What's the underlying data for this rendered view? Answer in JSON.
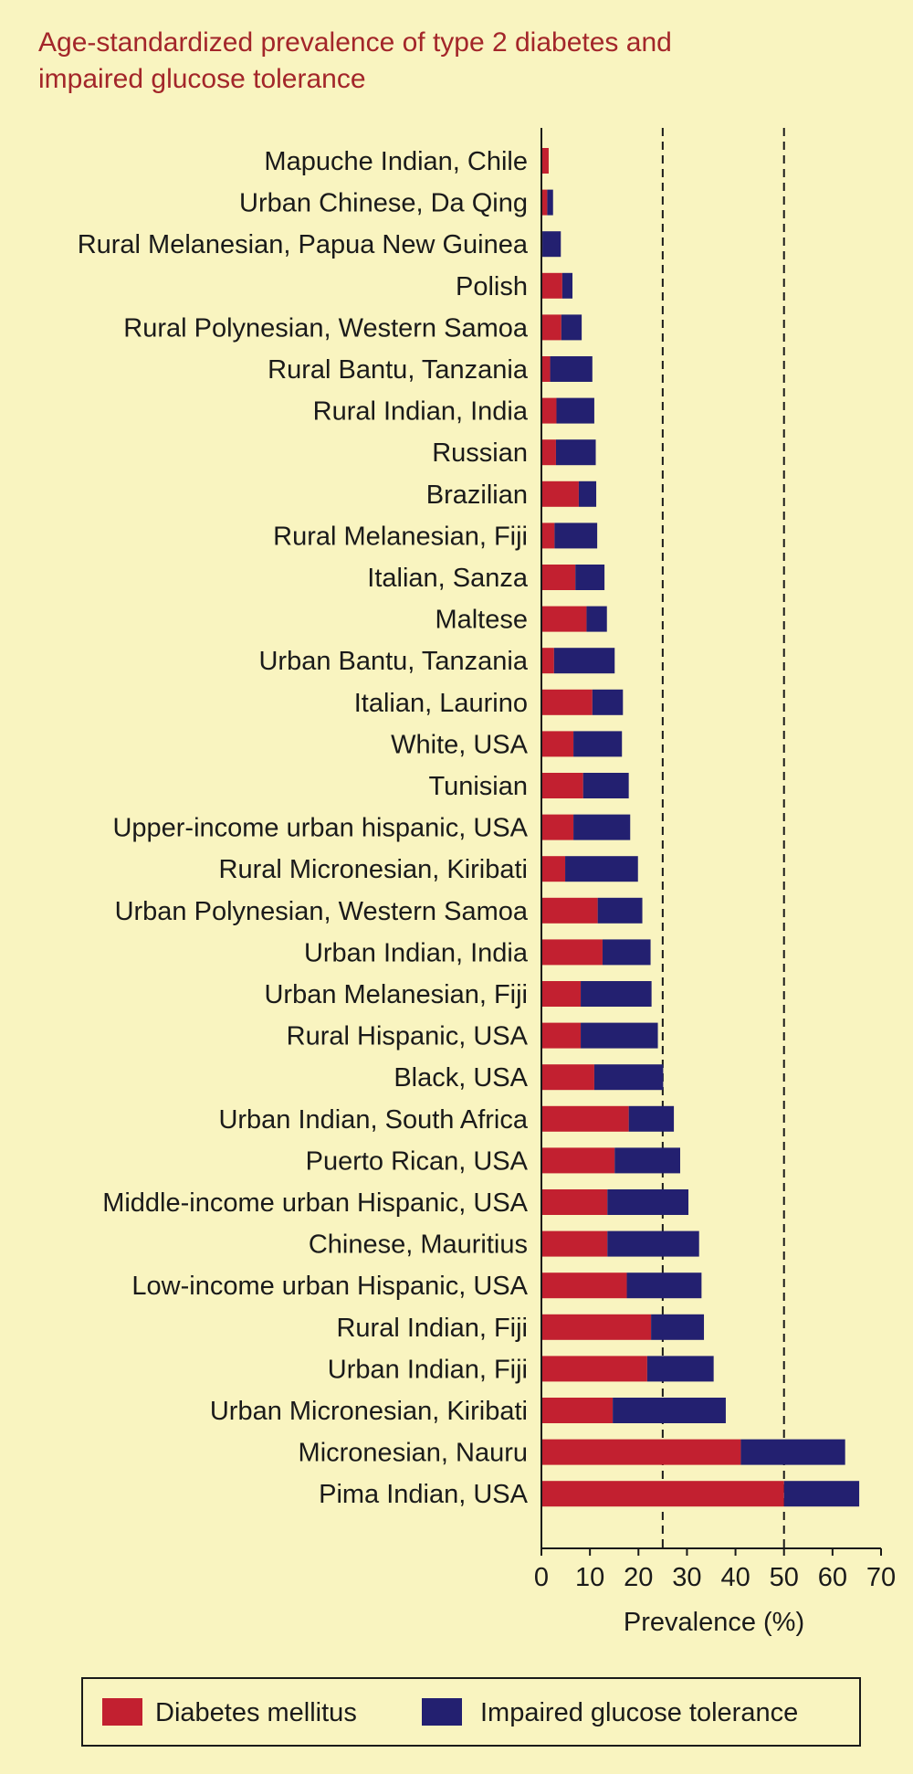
{
  "chart_data": {
    "type": "bar",
    "stacked": true,
    "orientation": "horizontal",
    "title": "Age-standardized prevalence of type 2 diabetes and impaired glucose tolerance",
    "title_lines": [
      "Age-standardized prevalence of type 2 diabetes and",
      "impaired glucose tolerance"
    ],
    "xlabel": "Prevalence (%)",
    "ylabel": "",
    "xlim": [
      0,
      70
    ],
    "xticks": [
      0,
      10,
      20,
      30,
      40,
      50,
      60,
      70
    ],
    "reference_lines": [
      25,
      50
    ],
    "legend_position": "bottom",
    "categories": [
      "Mapuche Indian, Chile",
      "Urban Chinese, Da Qing",
      "Rural Melanesian, Papua New Guinea",
      "Polish",
      "Rural Polynesian, Western Samoa",
      "Rural Bantu, Tanzania",
      "Rural Indian, India",
      "Russian",
      "Brazilian",
      "Rural Melanesian, Fiji",
      "Italian, Sanza",
      "Maltese",
      "Urban Bantu, Tanzania",
      "Italian, Laurino",
      "White, USA",
      "Tunisian",
      "Upper-income urban hispanic, USA",
      "Rural Micronesian, Kiribati",
      "Urban Polynesian, Western Samoa",
      "Urban Indian, India",
      "Urban Melanesian, Fiji",
      "Rural Hispanic, USA",
      "Black, USA",
      "Urban Indian, South Africa",
      "Puerto Rican, USA",
      "Middle-income urban Hispanic, USA",
      "Chinese, Mauritius",
      "Low-income urban Hispanic, USA",
      "Rural Indian, Fiji",
      "Urban Indian, Fiji",
      "Urban Micronesian, Kiribati",
      "Micronesian, Nauru",
      "Pima Indian, USA"
    ],
    "series": [
      {
        "name": "Diabetes mellitus",
        "color": "#c22030",
        "values": [
          1.5,
          1.2,
          0.2,
          4.3,
          4.1,
          1.8,
          3.1,
          3.0,
          7.7,
          2.7,
          7.0,
          9.3,
          2.6,
          10.5,
          6.6,
          8.6,
          6.6,
          4.9,
          11.6,
          12.6,
          8.1,
          8.1,
          10.9,
          18.0,
          15.1,
          13.6,
          13.6,
          17.6,
          22.6,
          21.8,
          14.7,
          41.1,
          50.0
        ]
      },
      {
        "name": "Impaired glucose tolerance",
        "color": "#232070",
        "values": [
          0.0,
          1.2,
          3.8,
          2.1,
          4.2,
          8.7,
          7.8,
          8.2,
          3.6,
          8.8,
          6.0,
          4.2,
          12.5,
          6.3,
          10.0,
          9.4,
          11.7,
          15.0,
          9.2,
          9.9,
          14.6,
          15.9,
          14.2,
          9.3,
          13.5,
          16.7,
          18.9,
          15.4,
          10.9,
          13.7,
          23.3,
          21.5,
          15.5
        ]
      }
    ]
  }
}
